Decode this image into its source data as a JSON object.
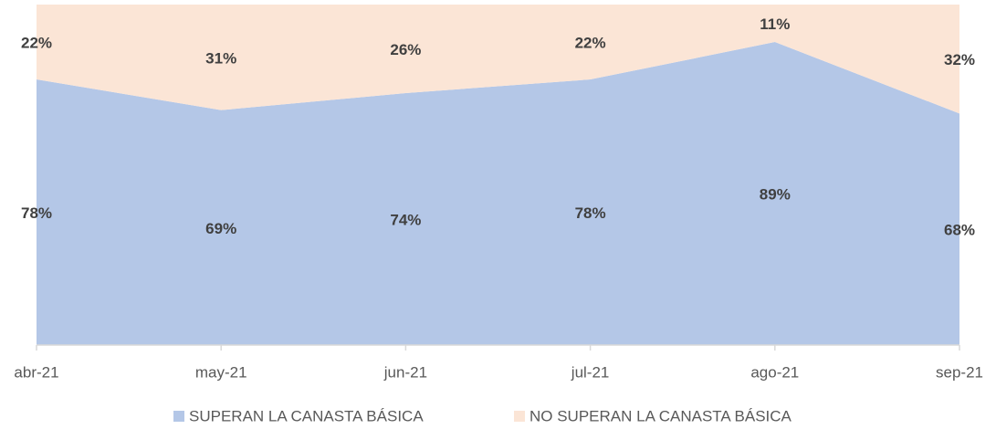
{
  "chart_data": {
    "type": "stacked_area",
    "categories": [
      "abr-21",
      "may-21",
      "jun-21",
      "jul-21",
      "ago-21",
      "sep-21"
    ],
    "ylim": [
      0,
      100
    ],
    "series": [
      {
        "name": "SUPERAN LA CANASTA BÁSICA",
        "color": "#b4c7e7",
        "values": [
          78,
          69,
          74,
          78,
          89,
          68
        ],
        "value_labels": [
          "78%",
          "69%",
          "74%",
          "78%",
          "89%",
          "68%"
        ]
      },
      {
        "name": "NO SUPERAN LA CANASTA BÁSICA",
        "color": "#fbe5d6",
        "values": [
          22,
          31,
          26,
          22,
          11,
          32
        ],
        "value_labels": [
          "22%",
          "31%",
          "26%",
          "22%",
          "11%",
          "32%"
        ]
      }
    ],
    "legend": "bottom"
  }
}
